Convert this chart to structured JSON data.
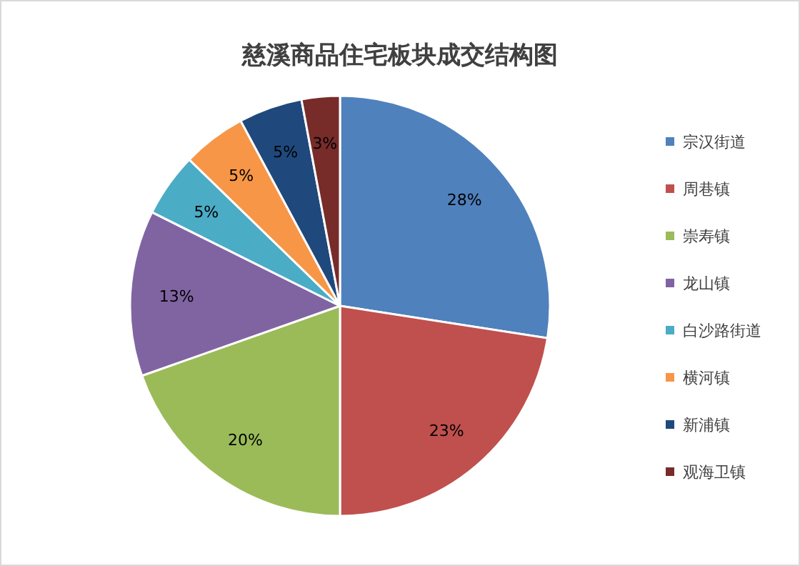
{
  "chart_data": {
    "type": "pie",
    "title": "慈溪商品住宅板块成交结构图",
    "categories": [
      "宗汉街道",
      "周巷镇",
      "崇寿镇",
      "龙山镇",
      "白沙路街道",
      "横河镇",
      "新浦镇",
      "观海卫镇"
    ],
    "values": [
      28,
      23,
      20,
      13,
      5,
      5,
      5,
      3
    ],
    "colors": [
      "#4f81bd",
      "#c0504d",
      "#9bbb59",
      "#8064a2",
      "#4bacc6",
      "#f79646",
      "#1f497d",
      "#772c2a"
    ],
    "value_labels": [
      "28%",
      "23%",
      "20%",
      "13%",
      "5%",
      "5%",
      "5%",
      "3%"
    ],
    "legend": "right"
  }
}
